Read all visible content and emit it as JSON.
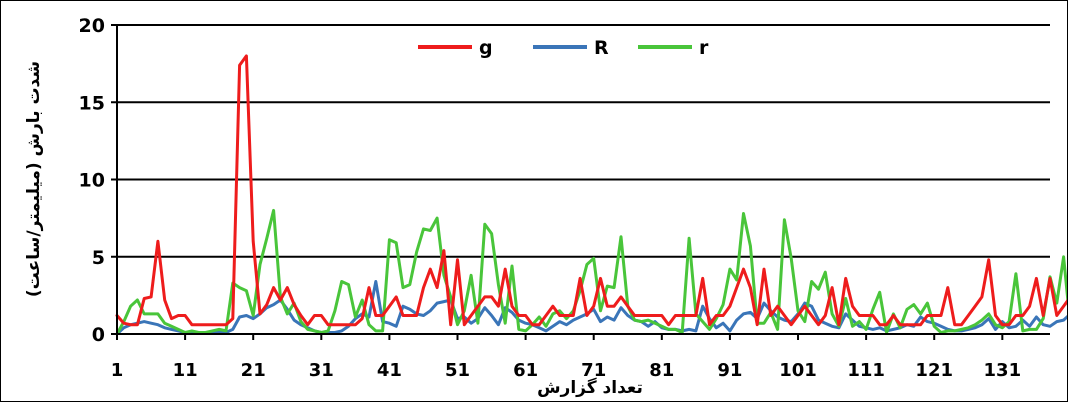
{
  "chart_data": {
    "type": "line",
    "title": "",
    "xlabel": "تعداد گزارش",
    "ylabel": "شدت بارش (میلیمتر/ساعت)",
    "ylim": [
      0,
      20
    ],
    "xlim": [
      1,
      138
    ],
    "yticks": [
      0,
      5,
      10,
      15,
      20
    ],
    "xticks": [
      1,
      11,
      21,
      31,
      41,
      51,
      61,
      71,
      81,
      91,
      101,
      111,
      121,
      131
    ],
    "grid": "horizontal",
    "legend_position": "top-center",
    "series": [
      {
        "name": "g",
        "color": "#ee1c1c",
        "values": [
          1.2,
          0.7,
          0.6,
          0.6,
          2.3,
          2.4,
          6.0,
          2.2,
          1.0,
          1.2,
          1.2,
          0.6,
          0.6,
          0.6,
          0.6,
          0.6,
          0.6,
          1.0,
          17.4,
          18.0,
          6.0,
          1.3,
          1.9,
          3.0,
          2.2,
          3.0,
          1.9,
          1.2,
          0.6,
          1.2,
          1.2,
          0.6,
          0.6,
          0.6,
          0.6,
          0.6,
          1.0,
          3.0,
          1.2,
          1.2,
          1.8,
          2.4,
          1.2,
          1.2,
          1.2,
          3.0,
          4.2,
          3.0,
          5.4,
          0.6,
          4.8,
          0.6,
          1.2,
          1.8,
          2.4,
          2.4,
          1.8,
          4.2,
          1.8,
          1.2,
          1.2,
          0.6,
          0.6,
          1.2,
          1.8,
          1.2,
          1.2,
          1.2,
          3.6,
          1.2,
          1.8,
          3.6,
          1.8,
          1.8,
          2.4,
          1.8,
          1.2,
          1.2,
          1.2,
          1.2,
          1.2,
          0.6,
          1.2,
          1.2,
          1.2,
          1.2,
          3.6,
          0.6,
          1.2,
          1.2,
          1.8,
          3.0,
          4.2,
          3.0,
          0.6,
          4.2,
          1.2,
          1.8,
          1.2,
          0.6,
          1.2,
          1.8,
          1.2,
          0.6,
          1.2,
          3.0,
          0.6,
          3.6,
          1.8,
          1.2,
          1.2,
          1.2,
          0.6,
          0.6,
          1.2,
          0.6,
          0.6,
          0.6,
          0.6,
          1.2,
          1.2,
          1.2,
          3.0,
          0.6,
          0.6,
          1.2,
          1.8,
          2.4,
          4.8,
          1.2,
          0.6,
          0.6,
          1.2,
          1.2,
          1.8,
          3.6,
          1.2,
          3.6,
          1.2,
          1.8,
          2.4,
          3.0,
          3.6
        ]
      },
      {
        "name": "R",
        "color": "#3a75b8",
        "values": [
          0.0,
          0.4,
          0.6,
          0.7,
          0.8,
          0.7,
          0.6,
          0.4,
          0.3,
          0.2,
          0.1,
          0.1,
          0.1,
          0.1,
          0.1,
          0.1,
          0.1,
          0.3,
          1.1,
          1.2,
          1.0,
          1.3,
          1.7,
          1.9,
          2.2,
          1.6,
          0.9,
          0.6,
          0.4,
          0.2,
          0.1,
          0.1,
          0.1,
          0.2,
          0.5,
          1.0,
          1.3,
          1.1,
          3.4,
          0.8,
          0.7,
          0.5,
          1.8,
          1.6,
          1.3,
          1.2,
          1.5,
          2.0,
          2.1,
          2.2,
          1.0,
          1.1,
          0.7,
          1.0,
          1.7,
          1.2,
          0.6,
          1.7,
          1.4,
          0.9,
          0.7,
          0.6,
          0.4,
          0.2,
          0.5,
          0.8,
          0.6,
          0.9,
          1.1,
          1.3,
          1.6,
          0.8,
          1.1,
          0.9,
          1.7,
          1.2,
          0.9,
          0.8,
          0.5,
          0.8,
          0.4,
          0.3,
          0.3,
          0.2,
          0.3,
          0.2,
          1.8,
          1.0,
          0.4,
          0.7,
          0.2,
          0.9,
          1.3,
          1.4,
          1.0,
          2.0,
          1.5,
          1.1,
          0.9,
          0.8,
          1.3,
          2.0,
          1.8,
          0.9,
          0.7,
          0.5,
          0.4,
          1.3,
          0.9,
          0.5,
          0.4,
          0.3,
          0.4,
          0.2,
          0.3,
          0.4,
          0.6,
          0.5,
          1.1,
          0.8,
          0.7,
          0.5,
          0.3,
          0.2,
          0.2,
          0.3,
          0.4,
          0.6,
          1.0,
          0.3,
          0.8,
          0.4,
          0.5,
          0.9,
          0.5,
          1.1,
          0.6,
          0.5,
          0.8,
          0.9,
          1.3,
          1.6
        ]
      },
      {
        "name": "r",
        "color": "#49c53a",
        "values": [
          0.0,
          0.8,
          1.8,
          2.2,
          1.3,
          1.3,
          1.3,
          0.7,
          0.5,
          0.3,
          0.1,
          0.2,
          0.1,
          0.1,
          0.2,
          0.3,
          0.2,
          3.3,
          3.0,
          2.8,
          1.2,
          4.5,
          6.2,
          8.0,
          2.4,
          1.3,
          2.0,
          0.8,
          0.3,
          0.2,
          0.1,
          0.2,
          1.5,
          3.4,
          3.2,
          1.1,
          2.2,
          0.6,
          0.2,
          0.2,
          6.1,
          5.9,
          3.0,
          3.2,
          5.3,
          6.8,
          6.7,
          7.5,
          3.8,
          2.4,
          0.6,
          1.5,
          3.8,
          0.7,
          7.1,
          6.5,
          3.2,
          0.7,
          4.4,
          0.3,
          0.2,
          0.6,
          1.1,
          0.5,
          1.3,
          1.5,
          1.0,
          1.5,
          2.8,
          4.5,
          4.9,
          1.5,
          3.1,
          3.0,
          6.3,
          1.8,
          0.9,
          0.8,
          0.9,
          0.7,
          0.5,
          0.3,
          0.3,
          0.1,
          6.2,
          1.3,
          0.8,
          0.3,
          1.0,
          1.9,
          4.2,
          3.5,
          7.8,
          5.7,
          0.7,
          0.7,
          1.4,
          0.3,
          7.4,
          4.9,
          1.5,
          0.8,
          3.4,
          2.9,
          4.0,
          1.3,
          0.5,
          2.3,
          0.5,
          0.8,
          0.3,
          1.6,
          2.7,
          0.1,
          1.3,
          0.4,
          1.6,
          1.9,
          1.3,
          2.0,
          0.5,
          0.1,
          0.2,
          0.2,
          0.3,
          0.4,
          0.6,
          0.9,
          1.3,
          0.6,
          0.4,
          0.8,
          3.9,
          0.2,
          0.3,
          0.3,
          1.0,
          3.7,
          2.0,
          5.0,
          0.5
        ]
      }
    ]
  }
}
